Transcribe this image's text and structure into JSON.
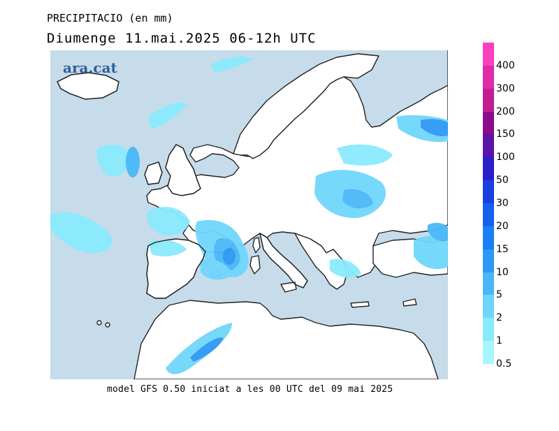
{
  "header": {
    "variable": "PRECIPITACIO (en mm)",
    "period": "Diumenge  11.mai.2025 06-12h UTC"
  },
  "logo": {
    "text": "ara.cat"
  },
  "footer": {
    "model_info": "model GFS 0.50 iniciat a les 00 UTC del 09 mai 2025"
  },
  "colors": {
    "sea": "#c6dcea",
    "land": "#ffffff",
    "coast": "#222222"
  },
  "legend": {
    "items": [
      {
        "label": "400",
        "color": "#fb3fbf"
      },
      {
        "label": "300",
        "color": "#e02aa8"
      },
      {
        "label": "200",
        "color": "#c21e92"
      },
      {
        "label": "150",
        "color": "#8a0c8a"
      },
      {
        "label": "100",
        "color": "#5a14a8"
      },
      {
        "label": "50",
        "color": "#2a1ec8"
      },
      {
        "label": "30",
        "color": "#1a3fe0"
      },
      {
        "label": "20",
        "color": "#1660f0"
      },
      {
        "label": "15",
        "color": "#1a7ff5"
      },
      {
        "label": "10",
        "color": "#2e98f5"
      },
      {
        "label": "5",
        "color": "#4ab8f8"
      },
      {
        "label": "2",
        "color": "#6fd6fb"
      },
      {
        "label": "1",
        "color": "#8aeafd"
      },
      {
        "label": "0.5",
        "color": "#a8f6fe"
      }
    ]
  }
}
